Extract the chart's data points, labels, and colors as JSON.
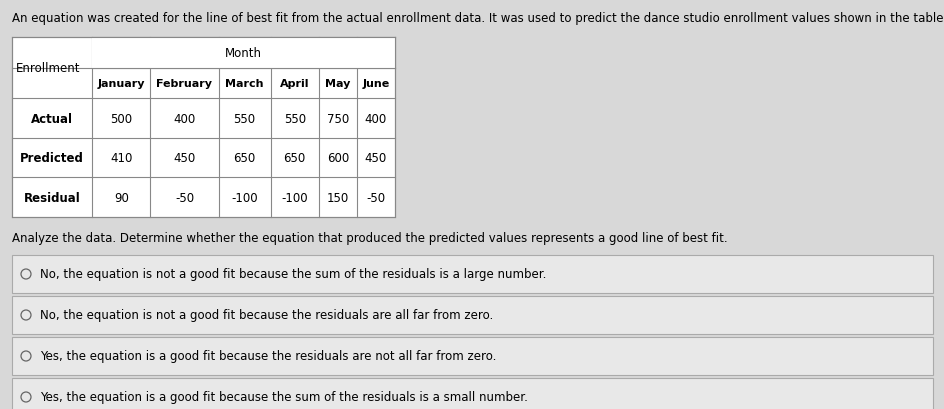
{
  "intro_text": "An equation was created for the line of best fit from the actual enrollment data. It was used to predict the dance studio enrollment values shown in the table below:",
  "analyze_text": "Analyze the data. Determine whether the equation that produced the predicted values represents a good line of best fit.",
  "table": {
    "col_header_top": "Month",
    "row_header": "Enrollment",
    "col_headers": [
      "January",
      "February",
      "March",
      "April",
      "May",
      "June"
    ],
    "rows": [
      {
        "label": "Actual",
        "values": [
          "500",
          "400",
          "550",
          "550",
          "750",
          "400"
        ]
      },
      {
        "label": "Predicted",
        "values": [
          "410",
          "450",
          "650",
          "650",
          "600",
          "450"
        ]
      },
      {
        "label": "Residual",
        "values": [
          "90",
          "-50",
          "-100",
          "-100",
          "150",
          "-50"
        ]
      }
    ]
  },
  "options": [
    "No, the equation is not a good fit because the sum of the residuals is a large number.",
    "No, the equation is not a good fit because the residuals are all far from zero.",
    "Yes, the equation is a good fit because the residuals are not all far from zero.",
    "Yes, the equation is a good fit because the sum of the residuals is a small number."
  ],
  "bg_color": "#d8d8d8",
  "table_bg": "#ffffff",
  "option_bg": "#e8e8e8",
  "option_border": "#aaaaaa",
  "text_color": "#000000",
  "font_size_intro": 8.5,
  "font_size_table": 8.5,
  "font_size_options": 8.5
}
